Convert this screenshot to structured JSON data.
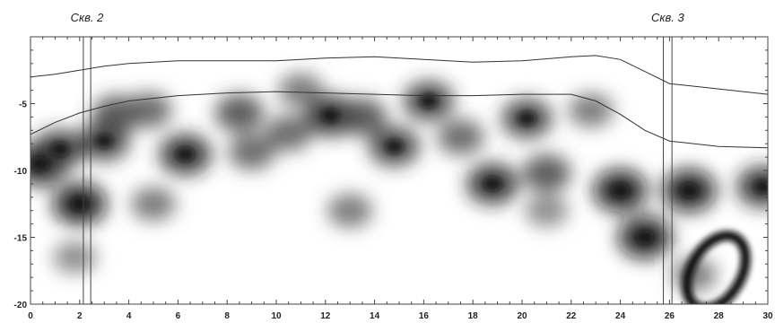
{
  "chart_data": {
    "type": "heatmap",
    "title": "",
    "xlabel": "",
    "ylabel": "",
    "xlim": [
      0,
      30
    ],
    "ylim": [
      -20,
      0
    ],
    "x_ticks": [
      0,
      2,
      4,
      6,
      8,
      10,
      12,
      14,
      16,
      18,
      20,
      22,
      24,
      26,
      28,
      30
    ],
    "y_ticks": [
      -5,
      -10,
      -15,
      -20
    ],
    "colormap": "white-to-black grayscale",
    "wells": [
      {
        "label": "Скв. 2",
        "x_from": 2.15,
        "x_to": 2.45
      },
      {
        "label": "Скв. 3",
        "x_from": 25.75,
        "x_to": 26.1
      }
    ],
    "horizons": [
      {
        "points": [
          [
            0,
            -3.0
          ],
          [
            1,
            -2.8
          ],
          [
            2,
            -2.5
          ],
          [
            3,
            -2.2
          ],
          [
            4,
            -2.0
          ],
          [
            6,
            -1.8
          ],
          [
            8,
            -1.8
          ],
          [
            10,
            -1.8
          ],
          [
            12,
            -1.6
          ],
          [
            14,
            -1.5
          ],
          [
            16,
            -1.7
          ],
          [
            18,
            -1.9
          ],
          [
            20,
            -1.8
          ],
          [
            22,
            -1.5
          ],
          [
            23,
            -1.4
          ],
          [
            24,
            -1.7
          ],
          [
            25,
            -2.6
          ],
          [
            26,
            -3.5
          ],
          [
            28,
            -3.9
          ],
          [
            30,
            -4.3
          ]
        ]
      },
      {
        "points": [
          [
            0,
            -7.3
          ],
          [
            1,
            -6.4
          ],
          [
            2,
            -5.7
          ],
          [
            3,
            -5.2
          ],
          [
            4,
            -4.8
          ],
          [
            6,
            -4.4
          ],
          [
            8,
            -4.2
          ],
          [
            10,
            -4.1
          ],
          [
            12,
            -4.2
          ],
          [
            14,
            -4.3
          ],
          [
            16,
            -4.4
          ],
          [
            18,
            -4.4
          ],
          [
            20,
            -4.3
          ],
          [
            22,
            -4.3
          ],
          [
            23,
            -4.8
          ],
          [
            24,
            -5.8
          ],
          [
            25,
            -7.0
          ],
          [
            26,
            -7.8
          ],
          [
            28,
            -8.2
          ],
          [
            30,
            -8.3
          ]
        ]
      }
    ],
    "anomalies": [
      {
        "x": 0.4,
        "y": -9.5,
        "intensity": 1.0
      },
      {
        "x": 1.2,
        "y": -8.4,
        "intensity": 0.8
      },
      {
        "x": 2.0,
        "y": -12.5,
        "intensity": 1.0
      },
      {
        "x": 1.8,
        "y": -16.5,
        "intensity": 0.4
      },
      {
        "x": 3.0,
        "y": -7.8,
        "intensity": 0.8
      },
      {
        "x": 3.5,
        "y": -5.8,
        "intensity": 0.7
      },
      {
        "x": 4.8,
        "y": -5.5,
        "intensity": 0.6
      },
      {
        "x": 6.3,
        "y": -8.8,
        "intensity": 0.9
      },
      {
        "x": 5.0,
        "y": -12.5,
        "intensity": 0.5
      },
      {
        "x": 8.5,
        "y": -5.7,
        "intensity": 0.7
      },
      {
        "x": 9.0,
        "y": -8.6,
        "intensity": 0.6
      },
      {
        "x": 10.5,
        "y": -7.2,
        "intensity": 0.6
      },
      {
        "x": 11.0,
        "y": -4.0,
        "intensity": 0.5
      },
      {
        "x": 12.2,
        "y": -5.9,
        "intensity": 0.9
      },
      {
        "x": 13.5,
        "y": -6.0,
        "intensity": 0.7
      },
      {
        "x": 14.8,
        "y": -8.2,
        "intensity": 0.8
      },
      {
        "x": 13.0,
        "y": -13.0,
        "intensity": 0.5
      },
      {
        "x": 16.2,
        "y": -4.8,
        "intensity": 0.8
      },
      {
        "x": 17.5,
        "y": -7.5,
        "intensity": 0.6
      },
      {
        "x": 18.8,
        "y": -11.0,
        "intensity": 0.9
      },
      {
        "x": 20.2,
        "y": -6.1,
        "intensity": 0.8
      },
      {
        "x": 21.0,
        "y": -10.2,
        "intensity": 0.7
      },
      {
        "x": 21.0,
        "y": -13.0,
        "intensity": 0.4
      },
      {
        "x": 22.8,
        "y": -5.5,
        "intensity": 0.5
      },
      {
        "x": 24.0,
        "y": -11.5,
        "intensity": 1.0
      },
      {
        "x": 25.0,
        "y": -15.0,
        "intensity": 1.0
      },
      {
        "x": 26.8,
        "y": -11.5,
        "intensity": 1.0
      },
      {
        "x": 27.0,
        "y": -17.8,
        "intensity": 0.5
      },
      {
        "x": 29.8,
        "y": -11.2,
        "intensity": 0.9
      }
    ]
  }
}
